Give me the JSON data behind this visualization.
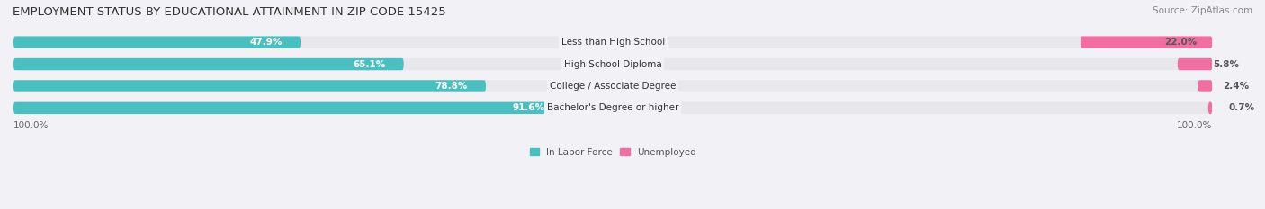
{
  "title": "EMPLOYMENT STATUS BY EDUCATIONAL ATTAINMENT IN ZIP CODE 15425",
  "source": "Source: ZipAtlas.com",
  "categories": [
    "Less than High School",
    "High School Diploma",
    "College / Associate Degree",
    "Bachelor's Degree or higher"
  ],
  "labor_force_pct": [
    47.9,
    65.1,
    78.8,
    91.6
  ],
  "unemployed_pct": [
    22.0,
    5.8,
    2.4,
    0.7
  ],
  "labor_force_color": "#4BBFBF",
  "unemployed_color": "#F06FA0",
  "bar_bg_color": "#E8E8EC",
  "background_color": "#F2F2F6",
  "title_fontsize": 9.5,
  "source_fontsize": 7.5,
  "label_fontsize": 7.5,
  "category_fontsize": 7.5,
  "legend_fontsize": 7.5,
  "xlim_left": -100,
  "xlim_right": 100,
  "x_tick_labels": [
    "100.0%",
    "100.0%"
  ]
}
